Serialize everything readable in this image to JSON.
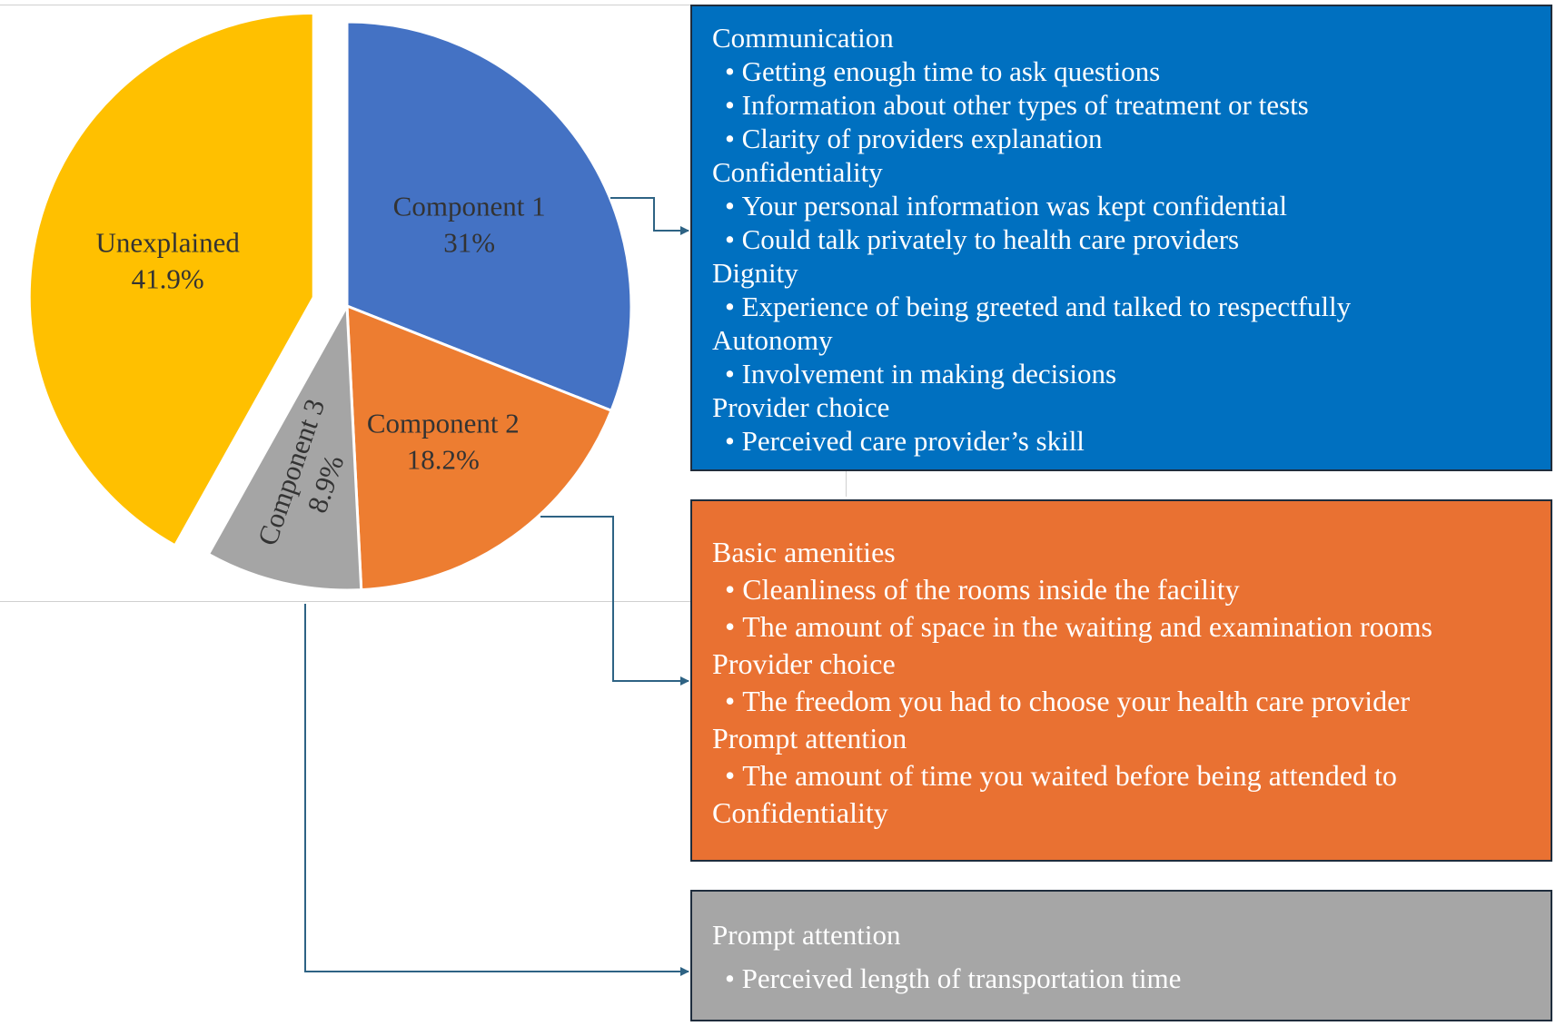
{
  "chart_data": {
    "type": "pie",
    "slices": [
      {
        "label": "Component 1",
        "value": 31,
        "display": "31%",
        "color": "#4472c4"
      },
      {
        "label": "Component 2",
        "value": 18.2,
        "display": "18.2%",
        "color": "#ed7d31"
      },
      {
        "label": "Component 3",
        "value": 8.9,
        "display": "8.9%",
        "color": "#a5a5a5"
      },
      {
        "label": "Unexplained",
        "value": 41.9,
        "display": "41.9%",
        "color": "#ffc000",
        "exploded": true
      }
    ],
    "start": "top, clockwise",
    "connector_color": "#2e6384"
  },
  "boxes": [
    {
      "component": "Component 1",
      "color": "#0070c0",
      "groups": [
        {
          "heading": "Communication",
          "items": [
            "Getting enough time to ask questions",
            "Information about other types of treatment or tests",
            "Clarity of providers explanation"
          ]
        },
        {
          "heading": "Confidentiality",
          "items": [
            "Your personal information was kept confidential",
            "Could talk privately to health care providers"
          ]
        },
        {
          "heading": "Dignity",
          "items": [
            "Experience of being greeted and talked to respectfully"
          ]
        },
        {
          "heading": "Autonomy",
          "items": [
            "Involvement in making decisions"
          ]
        },
        {
          "heading": "Provider choice",
          "items": [
            "Perceived care provider’s skill"
          ]
        }
      ]
    },
    {
      "component": "Component 2",
      "color": "#e97132",
      "groups": [
        {
          "heading": "Basic amenities",
          "items": [
            "Cleanliness of the rooms inside the facility",
            "The amount of space in the waiting and examination rooms"
          ]
        },
        {
          "heading": "Provider choice",
          "items": [
            "The freedom you had to choose your health care provider"
          ]
        },
        {
          "heading": "Prompt attention",
          "items": [
            "The amount of time you waited before being attended to"
          ]
        },
        {
          "heading": "Confidentiality",
          "items": []
        }
      ]
    },
    {
      "component": "Component 3",
      "color": "#a6a6a6",
      "groups": [
        {
          "heading": "Prompt attention",
          "items": [
            "Perceived length of transportation time"
          ]
        }
      ]
    }
  ]
}
